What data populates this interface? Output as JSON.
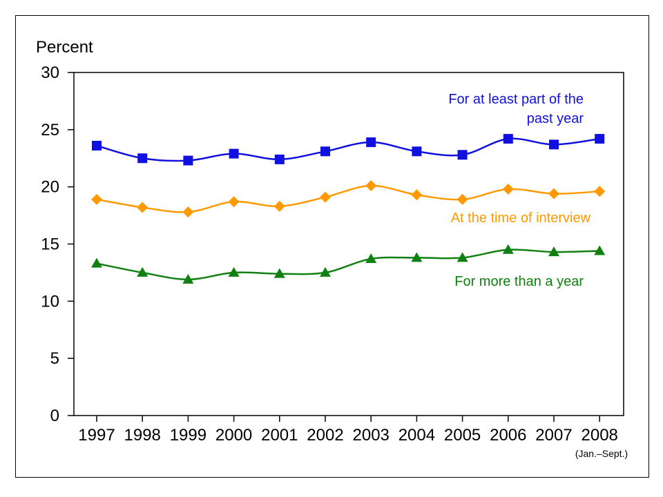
{
  "chart_data": {
    "type": "line",
    "ylabel": "Percent",
    "ylim": [
      0,
      30
    ],
    "yticks": [
      0,
      5,
      10,
      15,
      20,
      25,
      30
    ],
    "categories": [
      "1997",
      "1998",
      "1999",
      "2000",
      "2001",
      "2002",
      "2003",
      "2004",
      "2005",
      "2006",
      "2007",
      "2008"
    ],
    "x_note": "(Jan.–Sept.)",
    "grid": false,
    "series": [
      {
        "name": "For at least part of the past year",
        "label_lines": [
          "For at least part of the",
          "past year"
        ],
        "color": "#1010e0",
        "marker": "square",
        "values": [
          23.6,
          22.5,
          22.3,
          22.9,
          22.4,
          23.1,
          23.9,
          23.1,
          22.8,
          24.2,
          23.7,
          24.2
        ]
      },
      {
        "name": "At the time of interview",
        "label_lines": [
          "At the time of interview"
        ],
        "color": "#ff9900",
        "marker": "diamond",
        "values": [
          18.9,
          18.2,
          17.8,
          18.7,
          18.3,
          19.1,
          20.1,
          19.3,
          18.9,
          19.8,
          19.4,
          19.6
        ]
      },
      {
        "name": "For more than a year",
        "label_lines": [
          "For more than a year"
        ],
        "color": "#108010",
        "marker": "triangle",
        "values": [
          13.3,
          12.5,
          11.9,
          12.5,
          12.4,
          12.5,
          13.7,
          13.8,
          13.8,
          14.5,
          14.3,
          14.4
        ]
      }
    ]
  }
}
